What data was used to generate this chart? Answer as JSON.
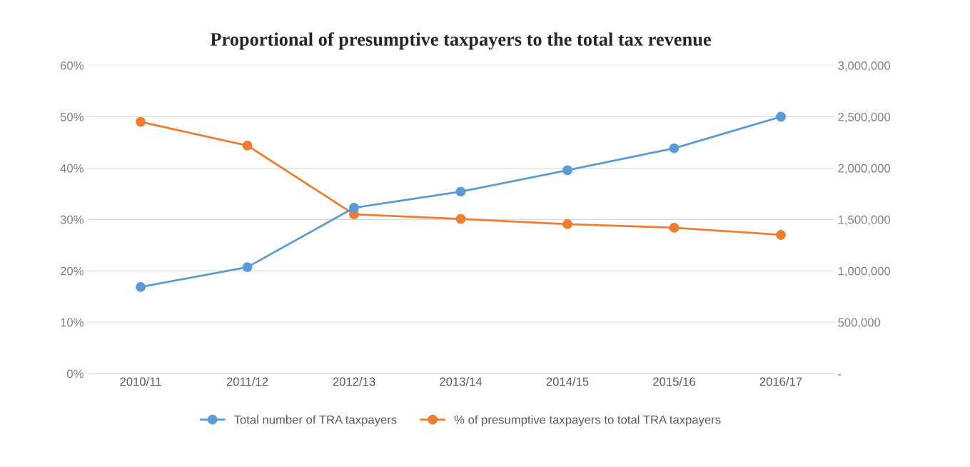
{
  "chart_data": {
    "type": "line",
    "title": "Proportional of presumptive taxpayers to the total tax revenue",
    "categories": [
      "2010/11",
      "2011/12",
      "2012/13",
      "2013/14",
      "2014/15",
      "2015/16",
      "2016/17"
    ],
    "series": [
      {
        "name": "Total number of TRA taxpayers",
        "color": "#5b9bd5",
        "axis": "y2",
        "values": [
          843000,
          1036000,
          1614000,
          1771000,
          1979000,
          2193000,
          2500000
        ]
      },
      {
        "name": "% of presumptive taxpayers to total TRA taxpayers",
        "color": "#ed7d31",
        "values": [
          49.0,
          44.4,
          31.0,
          30.1,
          29.1,
          28.4,
          27.0
        ]
      }
    ],
    "ylim": [
      0,
      60
    ],
    "yticks": [
      {
        "value": 0,
        "label": "0%"
      },
      {
        "value": 10,
        "label": "10%"
      },
      {
        "value": 20,
        "label": "20%"
      },
      {
        "value": 30,
        "label": "30%"
      },
      {
        "value": 40,
        "label": "40%"
      },
      {
        "value": 50,
        "label": "50%"
      },
      {
        "value": 60,
        "label": "60%"
      }
    ],
    "y2lim": [
      0,
      3000000
    ],
    "y2ticks": [
      {
        "value": 0,
        "label": "-"
      },
      {
        "value": 500000,
        "label": "500,000"
      },
      {
        "value": 1000000,
        "label": "1,000,000"
      },
      {
        "value": 1500000,
        "label": "1,500,000"
      },
      {
        "value": 2000000,
        "label": "2,000,000"
      },
      {
        "value": 2500000,
        "label": "2,500,000"
      },
      {
        "value": 3000000,
        "label": "3,000,000"
      }
    ],
    "grid": "y",
    "legend": "bottom",
    "marker": "circle",
    "line_style": "solid"
  }
}
